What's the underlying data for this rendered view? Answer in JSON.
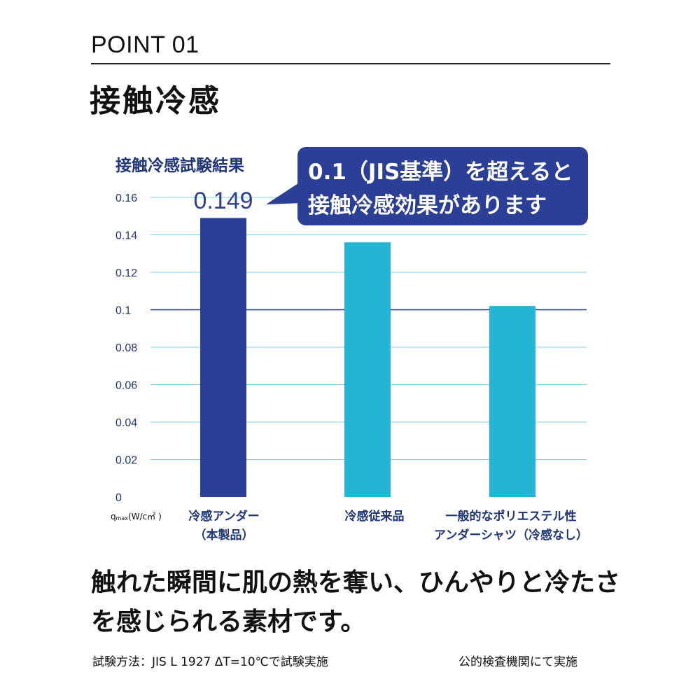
{
  "header": {
    "point_label": "POINT 01",
    "title": "接触冷感"
  },
  "callout": {
    "line1": "0.1（JIS基準）を超えると",
    "line2": "接触冷感効果があります"
  },
  "description": {
    "line1": "触れた瞬間に肌の熱を奪い、ひんやりと冷たさ",
    "line2": "を感じられる素材です。"
  },
  "footer": {
    "method": "試験方法：JIS L 1927 ΔT=10℃で試験実施",
    "institution": "公的検査機関にて実施"
  },
  "colors": {
    "product_bar": "#2b3f96",
    "other_bar": "#22b5d6",
    "navy": "#1f3577",
    "grid": "#7fd0e0"
  },
  "chart_data": {
    "type": "bar",
    "title": "接触冷感試験結果",
    "ylabel": "qmax(W/c㎡)",
    "ylabel_parts": {
      "main": "q",
      "sub": "max",
      "unit": "(W/c㎡ )"
    },
    "categories": [
      [
        "冷感アンダー",
        "（本製品）"
      ],
      [
        "冷感従来品"
      ],
      [
        "一般的なポリエステル性",
        "アンダーシャツ（冷感なし）"
      ]
    ],
    "values": [
      0.149,
      0.136,
      0.102
    ],
    "value_label": "0.149",
    "yticks": [
      "0",
      "0.02",
      "0.04",
      "0.06",
      "0.08",
      "0.1",
      "0.12",
      "0.14",
      "0.16"
    ],
    "ylim": [
      0,
      0.16
    ],
    "reference_line": 0.1,
    "grid": true
  }
}
